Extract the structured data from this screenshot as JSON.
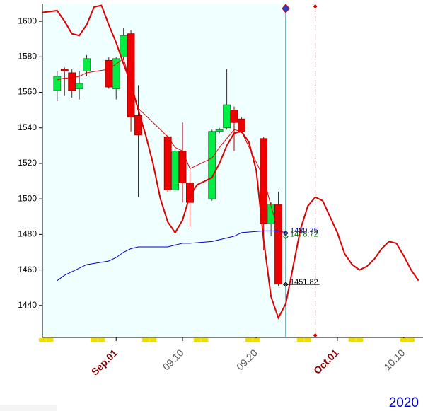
{
  "chart_data": {
    "type": "candlestick",
    "year": "2020",
    "xlim": [
      "08.22",
      "10.13"
    ],
    "ylim": [
      1422,
      1610
    ],
    "yticks": [
      1440,
      1460,
      1480,
      1500,
      1520,
      1540,
      1560,
      1580,
      1600
    ],
    "xticks": [
      {
        "value": "09.01",
        "label": "Sep.01"
      },
      "09.10",
      "09.20",
      {
        "value": "10.01",
        "label": "Oct.01"
      },
      "10.10"
    ],
    "up_color": "#00ee44",
    "down_color": "#ee0000",
    "candles": {
      "x": [
        "08.24",
        "08.25",
        "08.26",
        "08.27",
        "08.28",
        "08.31",
        "09.01",
        "09.02",
        "09.03",
        "09.04",
        "09.08",
        "09.09",
        "09.10",
        "09.11",
        "09.14",
        "09.15",
        "09.16",
        "09.17",
        "09.18",
        "09.21",
        "09.22",
        "09.23"
      ],
      "open": [
        1561,
        1573,
        1571,
        1562,
        1572,
        1578,
        1562,
        1580,
        1593,
        1547,
        1535,
        1505,
        1527,
        1509,
        1500,
        1538,
        1540,
        1550,
        1545,
        1534,
        1486,
        1497
      ],
      "high": [
        1572,
        1574,
        1573,
        1572,
        1581,
        1580,
        1580,
        1596,
        1595,
        1564,
        1536,
        1528,
        1543,
        1516,
        1539,
        1540,
        1573,
        1552,
        1546,
        1535,
        1498,
        1504
      ],
      "low": [
        1555,
        1558,
        1557,
        1556,
        1569,
        1562,
        1556,
        1578,
        1538,
        1501,
        1504,
        1504,
        1498,
        1484,
        1499,
        1537,
        1539,
        1527,
        1537,
        1471,
        1479,
        1451
      ],
      "close": [
        1569,
        1572,
        1561,
        1565,
        1579,
        1563,
        1579,
        1592,
        1546,
        1536,
        1505,
        1527,
        1509,
        1498,
        1538,
        1539,
        1553,
        1543,
        1538,
        1486,
        1497,
        1452
      ]
    },
    "lines": [
      {
        "color": "#0000cc",
        "width": 1,
        "x": [
          "08.24",
          "08.25",
          "08.26",
          "08.27",
          "08.28",
          "08.31",
          "09.01",
          "09.02",
          "09.03",
          "09.04",
          "09.08",
          "09.09",
          "09.10",
          "09.11",
          "09.14",
          "09.15",
          "09.16",
          "09.17",
          "09.18",
          "09.21",
          "09.22",
          "09.23",
          "09.24"
        ],
        "values": [
          1454,
          1457,
          1459,
          1461,
          1463,
          1465,
          1467,
          1470,
          1472,
          1473,
          1473,
          1474,
          1475,
          1475,
          1476,
          1477,
          1478,
          1479,
          1481,
          1482,
          1482,
          1482,
          1481
        ]
      },
      {
        "color": "#dd0000",
        "width": 1,
        "x": [
          "08.24",
          "08.25",
          "08.26",
          "08.27",
          "08.28",
          "08.31",
          "09.01",
          "09.02",
          "09.03",
          "09.04",
          "09.08",
          "09.09",
          "09.10",
          "09.11",
          "09.14",
          "09.15",
          "09.16",
          "09.17",
          "09.18",
          "09.21",
          "09.22",
          "09.23",
          "09.24"
        ],
        "values": [
          1567,
          1568,
          1568,
          1569,
          1571,
          1573,
          1576,
          1579,
          1564,
          1551,
          1535,
          1529,
          1527,
          1517,
          1523,
          1529,
          1534,
          1539,
          1538,
          1512,
          1496,
          1482,
          1480
        ]
      },
      {
        "color": "#dd0000",
        "width": 2,
        "x": [
          "08.22",
          "08.24",
          "08.25",
          "08.26",
          "08.27",
          "08.28",
          "08.29",
          "08.30",
          "08.31",
          "09.01",
          "09.02",
          "09.03",
          "09.04",
          "09.05",
          "09.06",
          "09.07",
          "09.08",
          "09.09",
          "09.10",
          "09.11",
          "09.12",
          "09.13",
          "09.14",
          "09.15",
          "09.16",
          "09.17",
          "09.18",
          "09.19",
          "09.20",
          "09.21",
          "09.22",
          "09.23",
          "09.24",
          "09.25",
          "09.26",
          "09.27",
          "09.28",
          "09.29",
          "09.30",
          "10.01",
          "10.02",
          "10.03",
          "10.04",
          "10.05",
          "10.06",
          "10.07",
          "10.08",
          "10.09",
          "10.10",
          "10.11",
          "10.12"
        ],
        "values": [
          1605,
          1606,
          1600,
          1593,
          1592,
          1598,
          1608,
          1609,
          1598,
          1588,
          1576,
          1565,
          1550,
          1536,
          1520,
          1500,
          1487,
          1481,
          1488,
          1502,
          1508,
          1510,
          1512,
          1520,
          1530,
          1537,
          1538,
          1532,
          1516,
          1477,
          1445,
          1433,
          1441,
          1462,
          1483,
          1496,
          1501,
          1499,
          1490,
          1481,
          1469,
          1463,
          1460,
          1462,
          1466,
          1472,
          1476,
          1475,
          1468,
          1460,
          1454
        ]
      }
    ],
    "cursor_x": "09.24",
    "forecast_x": "09.28",
    "annotations": [
      {
        "text": "1480.75",
        "color": "#000088"
      },
      {
        "text": "1478.72",
        "color": "#006600"
      },
      {
        "text": "1451.82",
        "color": "#000000"
      }
    ]
  }
}
